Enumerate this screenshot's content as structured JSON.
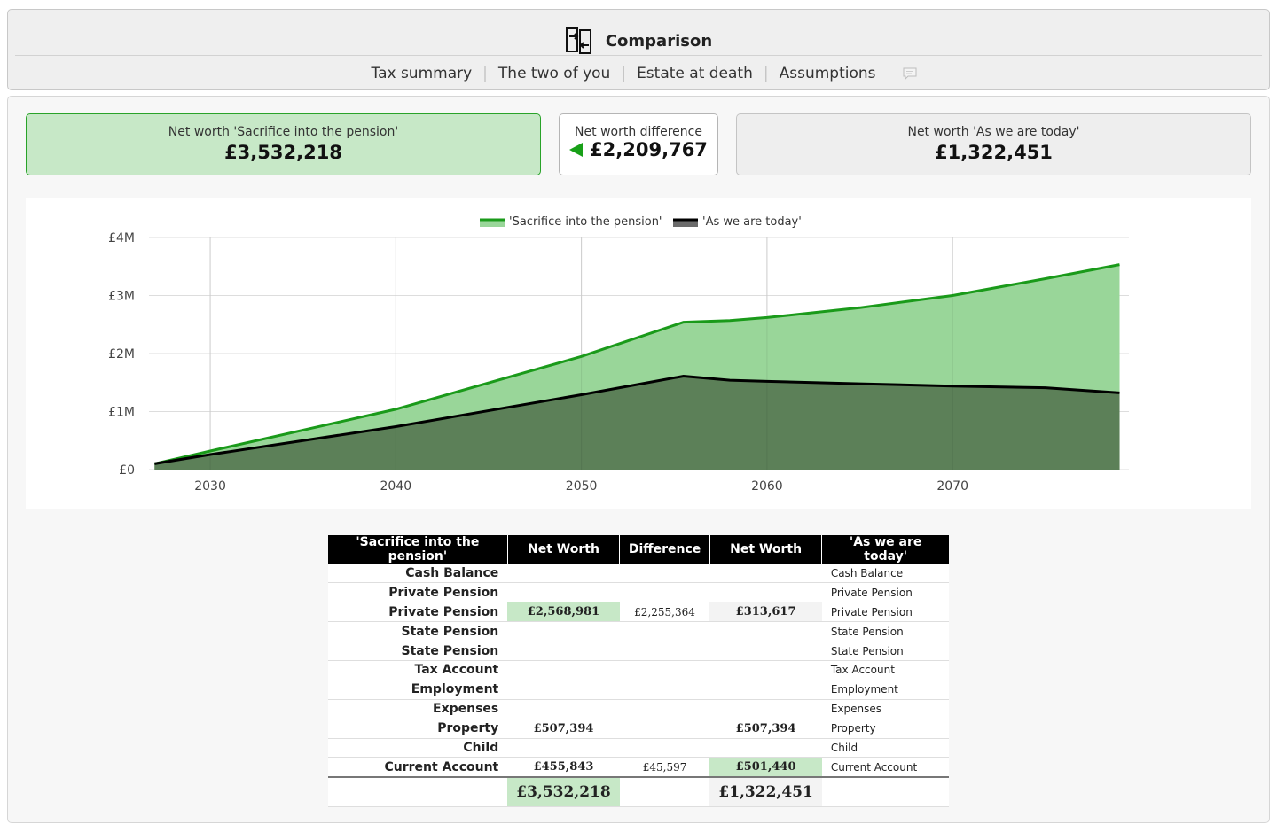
{
  "header": {
    "title": "Comparison",
    "icon": "compare-arrows-icon",
    "nav": [
      "Tax summary",
      "The two of you",
      "Estate at death",
      "Assumptions"
    ],
    "comment_icon": "comment-icon"
  },
  "cards": {
    "left_label": "Net worth 'Sacrifice into the pension'",
    "left_value": "£3,532,218",
    "mid_label": "Net worth difference",
    "mid_value": "£2,209,767",
    "right_label": "Net worth 'As we are today'",
    "right_value": "£1,322,451"
  },
  "colors": {
    "green_line": "#1a9a1a",
    "green_fill": "#99d699",
    "dark_fill": "#5c8058",
    "dark_line": "#000000",
    "highlight": "#c7e8c7"
  },
  "chart_data": {
    "type": "area",
    "x": [
      2027,
      2030,
      2040,
      2050,
      2055.5,
      2058,
      2060,
      2065,
      2070,
      2075,
      2079
    ],
    "series": [
      {
        "name": "'Sacrifice into the pension'",
        "values": [
          100000,
          320000,
          1040000,
          1950000,
          2540000,
          2570000,
          2620000,
          2790000,
          3000000,
          3290000,
          3532218
        ]
      },
      {
        "name": "'As we are today'",
        "values": [
          100000,
          260000,
          740000,
          1290000,
          1610000,
          1540000,
          1520000,
          1480000,
          1440000,
          1410000,
          1322451
        ]
      }
    ],
    "yticks": [
      "£0",
      "£1M",
      "£2M",
      "£3M",
      "£4M"
    ],
    "xticks": [
      "2030",
      "2040",
      "2050",
      "2060",
      "2070"
    ],
    "ylim": [
      0,
      4000000
    ],
    "xlim": [
      2026.7,
      2079.5
    ],
    "grid": true,
    "legend": "top-center"
  },
  "table": {
    "headers": [
      "'Sacrifice into the pension'",
      "Net Worth",
      "Difference",
      "Net Worth",
      "'As we are today'"
    ],
    "rows": [
      {
        "label": "Cash Balance",
        "left": "",
        "diff": "",
        "right": "",
        "rlabel": "Cash Balance"
      },
      {
        "label": "Private Pension",
        "left": "",
        "diff": "",
        "right": "",
        "rlabel": "Private Pension"
      },
      {
        "label": "Private Pension",
        "left": "£2,568,981",
        "diff": "£2,255,364",
        "right": "£313,617",
        "rlabel": "Private Pension"
      },
      {
        "label": "State Pension",
        "left": "",
        "diff": "",
        "right": "",
        "rlabel": "State Pension"
      },
      {
        "label": "State Pension",
        "left": "",
        "diff": "",
        "right": "",
        "rlabel": "State Pension"
      },
      {
        "label": "Tax Account",
        "left": "",
        "diff": "",
        "right": "",
        "rlabel": "Tax Account"
      },
      {
        "label": "Employment",
        "left": "",
        "diff": "",
        "right": "",
        "rlabel": "Employment"
      },
      {
        "label": "Expenses",
        "left": "",
        "diff": "",
        "right": "",
        "rlabel": "Expenses"
      },
      {
        "label": "Property",
        "left": "£507,394",
        "diff": "",
        "right": "£507,394",
        "rlabel": "Property"
      },
      {
        "label": "Child",
        "left": "",
        "diff": "",
        "right": "",
        "rlabel": "Child"
      },
      {
        "label": "Current Account",
        "left": "£455,843",
        "diff": "£45,597",
        "right": "£501,440",
        "rlabel": "Current Account"
      }
    ],
    "total_left": "£3,532,218",
    "total_right": "£1,322,451"
  }
}
